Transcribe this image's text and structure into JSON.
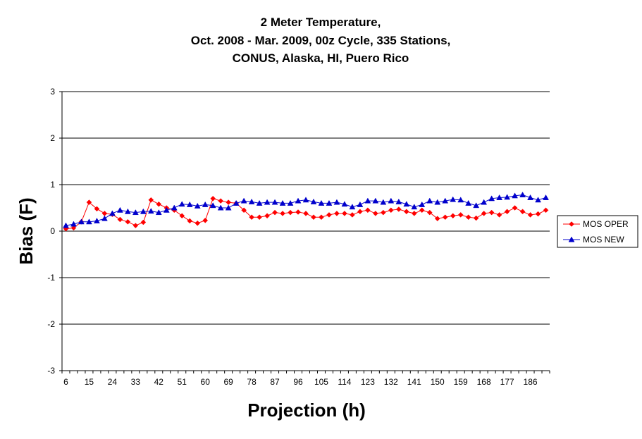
{
  "chart_data": {
    "type": "line",
    "title": [
      "2 Meter Temperature,",
      "Oct. 2008 - Mar. 2009, 00z Cycle, 335 Stations,",
      "CONUS, Alaska, HI, Puero Rico"
    ],
    "xlabel": "Projection (h)",
    "ylabel": "Bias (F)",
    "ylim": [
      -3,
      3
    ],
    "yticks": [
      -3,
      -2,
      -1,
      0,
      1,
      2,
      3
    ],
    "xtick_labels": [
      "6",
      "15",
      "24",
      "33",
      "42",
      "51",
      "60",
      "69",
      "78",
      "87",
      "96",
      "105",
      "114",
      "123",
      "132",
      "141",
      "150",
      "159",
      "168",
      "177",
      "186"
    ],
    "x": [
      6,
      9,
      12,
      15,
      18,
      21,
      24,
      27,
      30,
      33,
      36,
      39,
      42,
      45,
      48,
      51,
      54,
      57,
      60,
      63,
      66,
      69,
      72,
      75,
      78,
      81,
      84,
      87,
      90,
      93,
      96,
      99,
      102,
      105,
      108,
      111,
      114,
      117,
      120,
      123,
      126,
      129,
      132,
      135,
      138,
      141,
      144,
      147,
      150,
      153,
      156,
      159,
      162,
      165,
      168,
      171,
      174,
      177,
      180,
      183,
      186,
      189,
      192
    ],
    "legend_position": "right",
    "grid": "horizontal",
    "series": [
      {
        "name": "MOS OPER",
        "color": "#ff0000",
        "marker": "diamond",
        "values": [
          0.05,
          0.07,
          0.2,
          0.62,
          0.48,
          0.38,
          0.36,
          0.25,
          0.2,
          0.12,
          0.19,
          0.67,
          0.58,
          0.5,
          0.45,
          0.33,
          0.22,
          0.17,
          0.23,
          0.7,
          0.65,
          0.62,
          0.6,
          0.45,
          0.3,
          0.3,
          0.33,
          0.4,
          0.38,
          0.4,
          0.41,
          0.38,
          0.3,
          0.3,
          0.35,
          0.38,
          0.38,
          0.35,
          0.42,
          0.45,
          0.38,
          0.4,
          0.45,
          0.47,
          0.42,
          0.38,
          0.45,
          0.4,
          0.27,
          0.3,
          0.33,
          0.35,
          0.3,
          0.28,
          0.38,
          0.4,
          0.35,
          0.42,
          0.5,
          0.42,
          0.35,
          0.37,
          0.45
        ]
      },
      {
        "name": "MOS NEW",
        "color": "#0000cc",
        "marker": "triangle",
        "values": [
          0.12,
          0.15,
          0.2,
          0.2,
          0.22,
          0.27,
          0.38,
          0.45,
          0.42,
          0.4,
          0.42,
          0.43,
          0.4,
          0.45,
          0.5,
          0.58,
          0.57,
          0.54,
          0.57,
          0.55,
          0.5,
          0.5,
          0.6,
          0.65,
          0.63,
          0.6,
          0.62,
          0.62,
          0.6,
          0.6,
          0.65,
          0.67,
          0.63,
          0.6,
          0.6,
          0.62,
          0.58,
          0.52,
          0.57,
          0.65,
          0.65,
          0.62,
          0.65,
          0.63,
          0.58,
          0.52,
          0.57,
          0.65,
          0.62,
          0.65,
          0.68,
          0.67,
          0.6,
          0.55,
          0.62,
          0.7,
          0.72,
          0.73,
          0.76,
          0.78,
          0.72,
          0.67,
          0.72
        ]
      }
    ]
  }
}
